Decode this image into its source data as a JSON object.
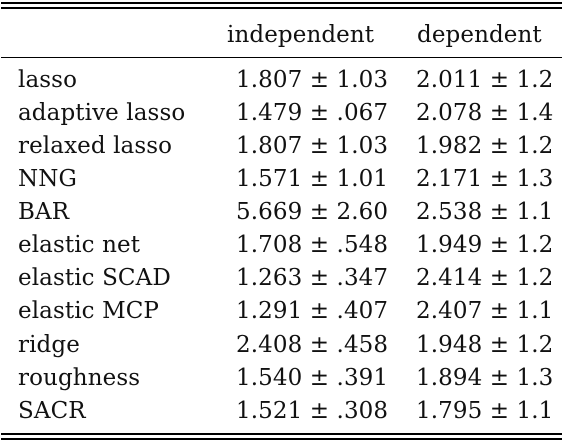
{
  "table": {
    "headers": [
      "",
      "independent",
      "dependent"
    ],
    "rows": [
      {
        "method": "lasso",
        "independent": "1.807 ± 1.03",
        "dependent": "2.011 ± 1.2"
      },
      {
        "method": "adaptive lasso",
        "independent": "1.479 ± .067",
        "dependent": "2.078 ± 1.4"
      },
      {
        "method": "relaxed lasso",
        "independent": "1.807 ± 1.03",
        "dependent": "1.982 ± 1.2"
      },
      {
        "method": "NNG",
        "independent": "1.571 ± 1.01",
        "dependent": "2.171 ± 1.3"
      },
      {
        "method": "BAR",
        "independent": "5.669 ± 2.60",
        "dependent": "2.538 ± 1.1"
      },
      {
        "method": "elastic net",
        "independent": "1.708 ± .548",
        "dependent": "1.949 ± 1.2"
      },
      {
        "method": "elastic SCAD",
        "independent": "1.263 ± .347",
        "dependent": "2.414 ± 1.2"
      },
      {
        "method": "elastic MCP",
        "independent": "1.291 ± .407",
        "dependent": "2.407 ± 1.1"
      },
      {
        "method": "ridge",
        "independent": "2.408 ± .458",
        "dependent": "1.948 ± 1.2"
      },
      {
        "method": "roughness",
        "independent": "1.540 ± .391",
        "dependent": "1.894 ± 1.3"
      },
      {
        "method": "SACR",
        "independent": "1.521 ± .308",
        "dependent": "1.795 ± 1.1"
      }
    ]
  }
}
